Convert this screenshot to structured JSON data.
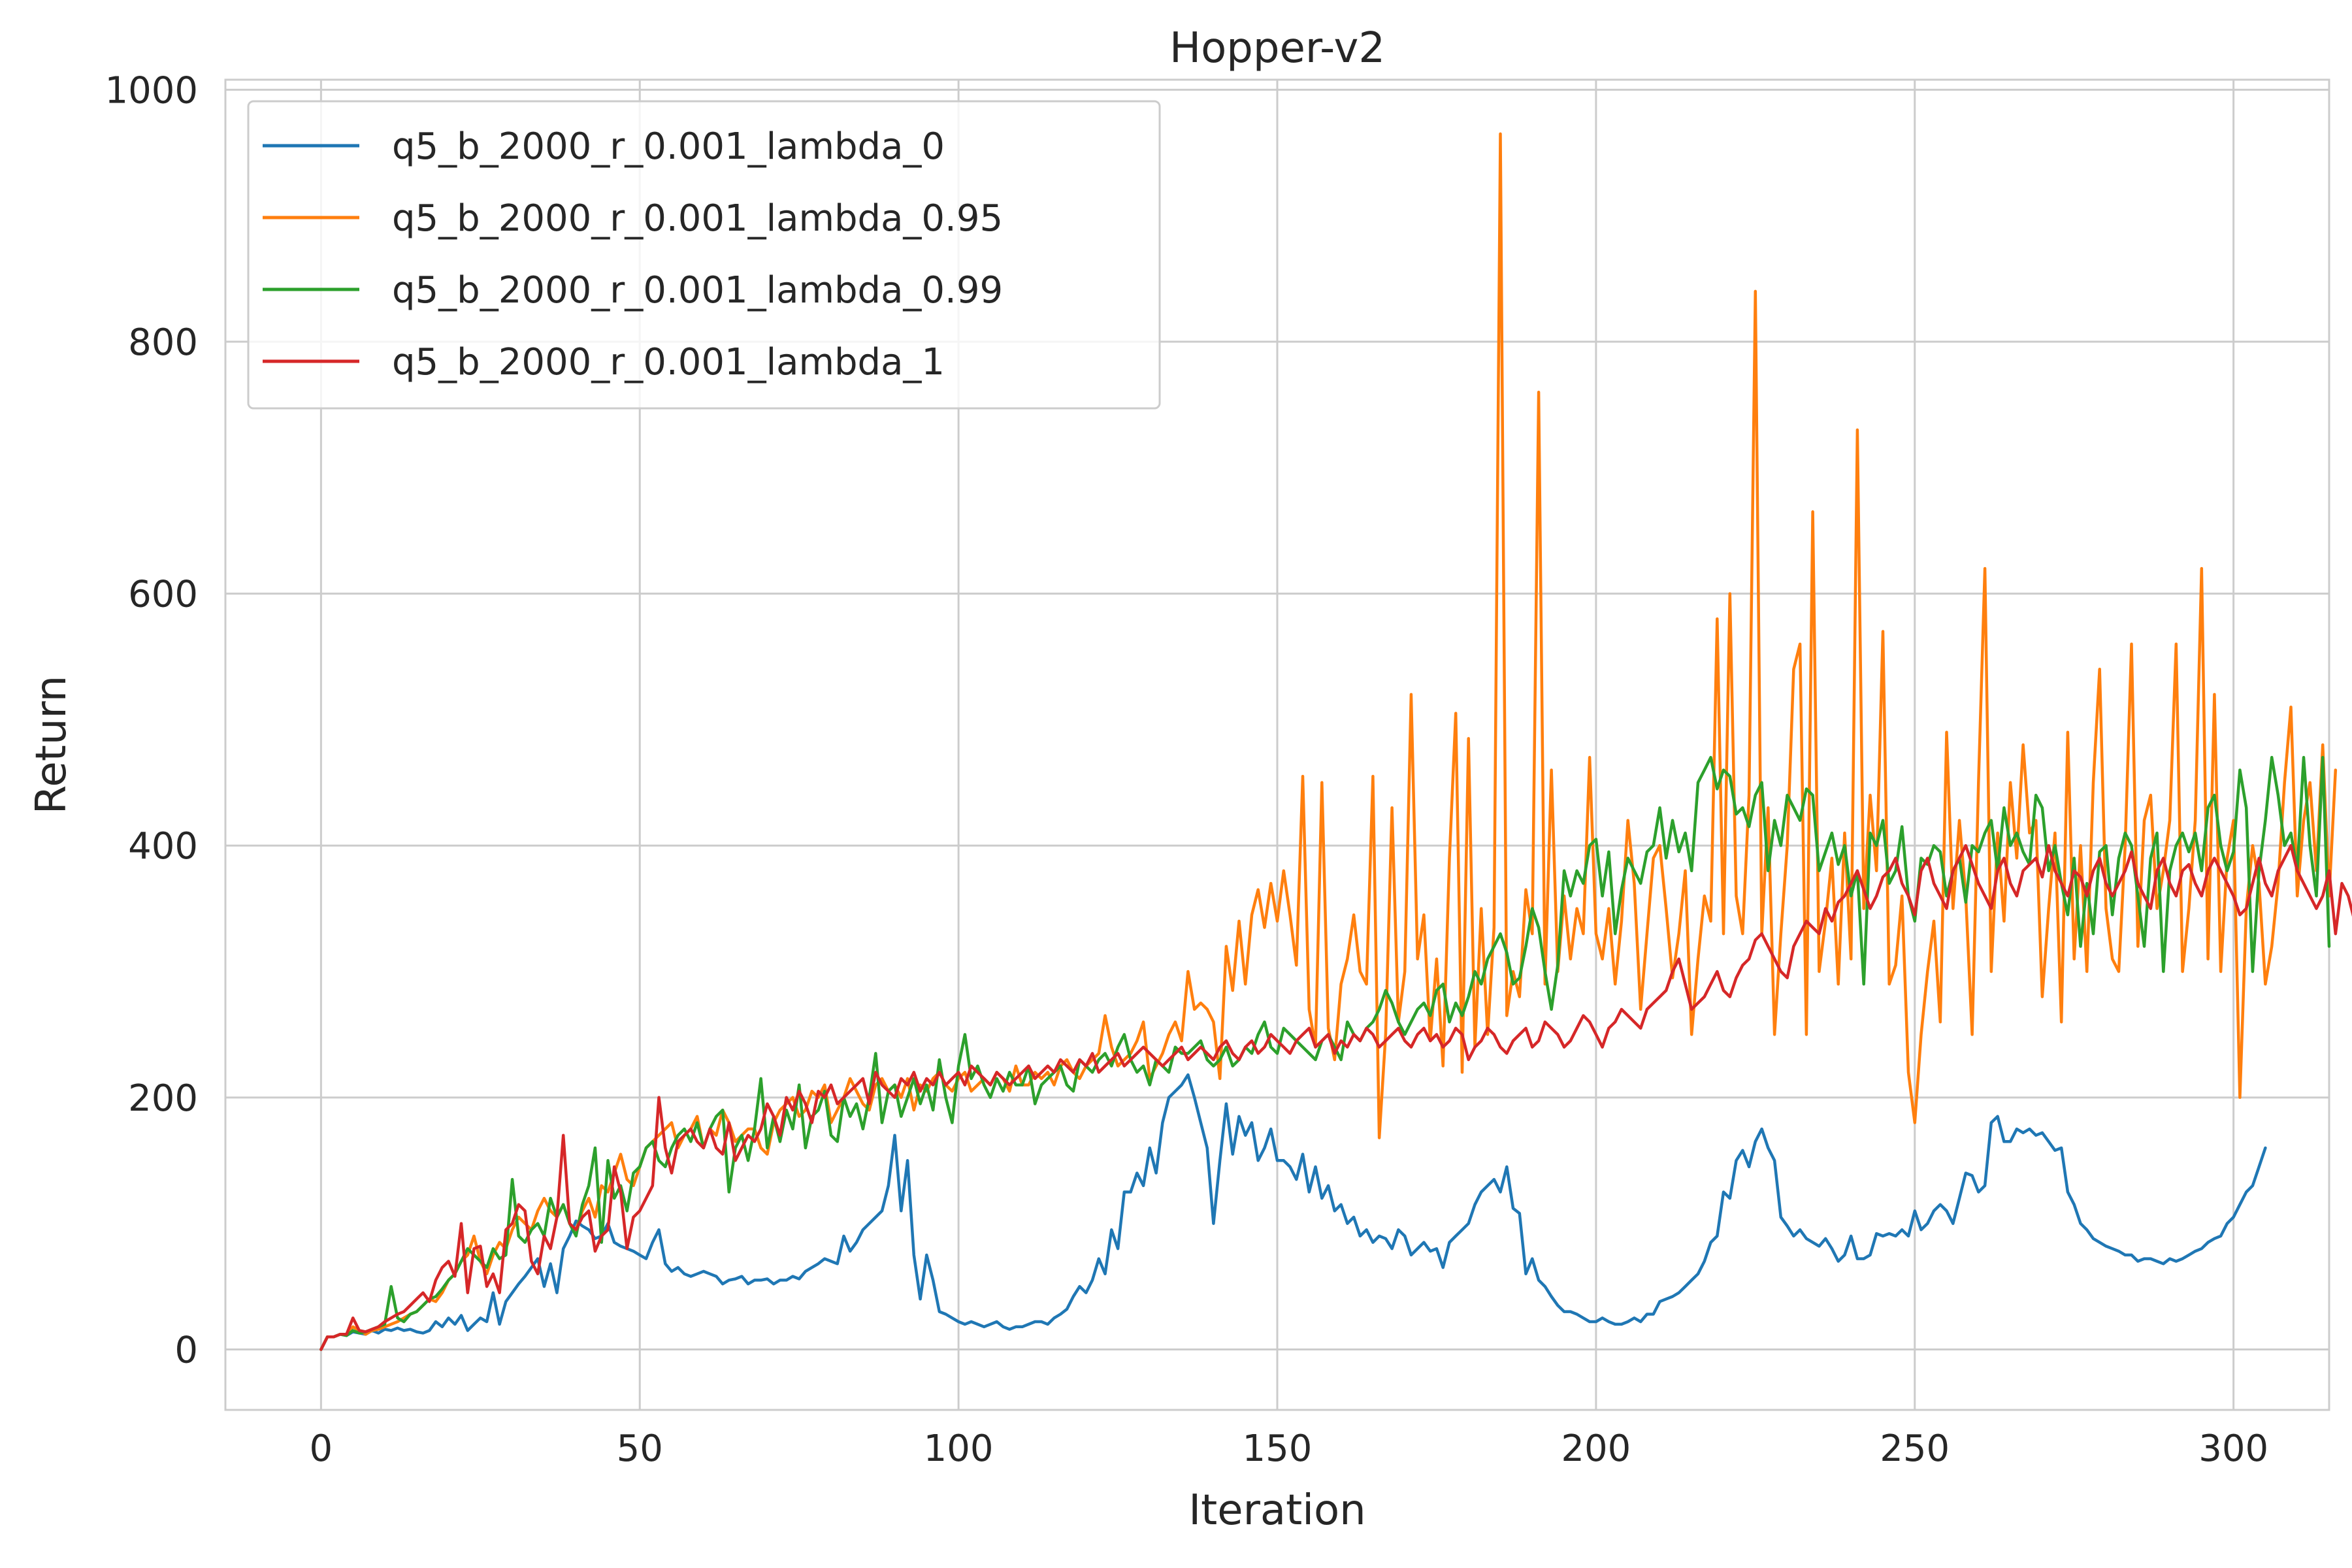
{
  "chart_data": {
    "type": "line",
    "title": "Hopper-v2",
    "xlabel": "Iteration",
    "ylabel": "Return",
    "xlim": [
      -15,
      315
    ],
    "ylim": [
      -48,
      1008
    ],
    "xticks": [
      0,
      50,
      100,
      150,
      200,
      250,
      300
    ],
    "yticks": [
      0,
      200,
      400,
      600,
      800,
      1000
    ],
    "grid": true,
    "legend_position": "upper-left",
    "series": [
      {
        "name": "q5_b_2000_r_0.001_lambda_0",
        "color": "#1f77b4",
        "x_start": 0,
        "x_step": 1,
        "values": [
          0,
          10,
          10,
          12,
          11,
          14,
          13,
          12,
          15,
          13,
          16,
          15,
          17,
          15,
          16,
          14,
          13,
          15,
          22,
          18,
          25,
          20,
          27,
          15,
          20,
          25,
          22,
          45,
          20,
          38,
          45,
          52,
          58,
          65,
          72,
          50,
          68,
          45,
          80,
          90,
          102,
          98,
          95,
          88,
          90,
          100,
          85,
          82,
          80,
          78,
          75,
          72,
          85,
          95,
          68,
          62,
          65,
          60,
          58,
          60,
          62,
          60,
          58,
          52,
          55,
          56,
          58,
          52,
          55,
          55,
          56,
          52,
          55,
          55,
          58,
          56,
          62,
          65,
          68,
          72,
          70,
          68,
          90,
          78,
          85,
          95,
          100,
          105,
          110,
          130,
          170,
          110,
          150,
          75,
          40,
          75,
          55,
          30,
          28,
          25,
          22,
          20,
          22,
          20,
          18,
          20,
          22,
          18,
          16,
          18,
          18,
          20,
          22,
          22,
          20,
          25,
          28,
          32,
          42,
          50,
          45,
          55,
          72,
          60,
          95,
          80,
          125,
          125,
          140,
          130,
          160,
          140,
          180,
          200,
          205,
          210,
          218,
          200,
          180,
          160,
          100,
          150,
          195,
          155,
          185,
          170,
          180,
          150,
          160,
          175,
          150,
          150,
          145,
          135,
          155,
          125,
          145,
          120,
          130,
          110,
          115,
          100,
          105,
          90,
          95,
          85,
          90,
          88,
          80,
          95,
          90,
          75,
          80,
          85,
          78,
          80,
          65,
          85,
          90,
          95,
          100,
          115,
          125,
          130,
          135,
          125,
          145,
          112,
          108,
          60,
          72,
          55,
          50,
          42,
          35,
          30,
          30,
          28,
          25,
          22,
          22,
          25,
          22,
          20,
          20,
          22,
          25,
          22,
          28,
          28,
          38,
          40,
          42,
          45,
          50,
          55,
          60,
          70,
          85,
          90,
          125,
          120,
          150,
          158,
          145,
          165,
          175,
          160,
          150,
          105,
          98,
          90,
          95,
          88,
          85,
          82,
          88,
          80,
          70,
          75,
          90,
          72,
          72,
          75,
          92,
          90,
          92,
          90,
          95,
          90,
          110,
          95,
          100,
          110,
          115,
          110,
          100,
          120,
          140,
          138,
          125,
          130,
          180,
          185,
          165,
          165,
          175,
          172,
          175,
          170,
          172,
          165,
          158,
          160,
          125,
          115,
          100,
          95,
          88,
          85,
          82,
          80,
          78,
          75,
          75,
          70,
          72,
          72,
          70,
          68,
          72,
          70,
          72,
          75,
          78,
          80,
          85,
          88,
          90,
          100,
          105,
          115,
          125,
          130,
          145,
          160
        ]
      },
      {
        "name": "q5_b_2000_r_0.001_lambda_0.95",
        "color": "#ff7f0e",
        "x_start": 0,
        "x_step": 1,
        "values": [
          0,
          10,
          10,
          12,
          12,
          18,
          15,
          12,
          15,
          16,
          18,
          20,
          22,
          25,
          28,
          30,
          35,
          40,
          38,
          45,
          55,
          60,
          70,
          75,
          90,
          70,
          60,
          75,
          85,
          80,
          95,
          105,
          100,
          95,
          110,
          120,
          110,
          105,
          115,
          100,
          95,
          110,
          120,
          105,
          130,
          125,
          140,
          155,
          135,
          130,
          145,
          160,
          165,
          170,
          175,
          180,
          160,
          170,
          175,
          185,
          160,
          175,
          170,
          190,
          180,
          165,
          170,
          175,
          175,
          160,
          155,
          180,
          190,
          195,
          200,
          185,
          190,
          205,
          200,
          210,
          180,
          190,
          200,
          215,
          205,
          195,
          190,
          210,
          215,
          205,
          210,
          200,
          215,
          190,
          210,
          205,
          215,
          220,
          210,
          205,
          215,
          220,
          205,
          210,
          215,
          210,
          220,
          215,
          205,
          225,
          210,
          210,
          220,
          215,
          220,
          210,
          225,
          230,
          220,
          215,
          225,
          230,
          235,
          265,
          240,
          225,
          230,
          235,
          245,
          260,
          215,
          225,
          235,
          250,
          260,
          245,
          300,
          270,
          275,
          270,
          260,
          215,
          320,
          285,
          340,
          290,
          345,
          365,
          335,
          370,
          340,
          380,
          345,
          305,
          455,
          270,
          240,
          450,
          255,
          230,
          290,
          310,
          345,
          300,
          290,
          455,
          168,
          250,
          430,
          260,
          300,
          520,
          310,
          345,
          245,
          310,
          225,
          390,
          505,
          220,
          485,
          240,
          350,
          250,
          335,
          965,
          265,
          300,
          280,
          365,
          330,
          760,
          290,
          460,
          300,
          360,
          310,
          350,
          330,
          470,
          330,
          310,
          350,
          290,
          340,
          420,
          370,
          270,
          330,
          390,
          400,
          350,
          295,
          330,
          380,
          250,
          310,
          360,
          340,
          580,
          330,
          600,
          360,
          330,
          440,
          840,
          330,
          430,
          250,
          330,
          400,
          540,
          560,
          250,
          665,
          300,
          340,
          390,
          290,
          410,
          310,
          730,
          350,
          440,
          380,
          570,
          290,
          305,
          360,
          220,
          180,
          250,
          300,
          340,
          260,
          490,
          350,
          420,
          360,
          250,
          450,
          620,
          300,
          410,
          340,
          450,
          390,
          480,
          410,
          420,
          280,
          350,
          410,
          260,
          490,
          310,
          400,
          300,
          450,
          540,
          350,
          310,
          300,
          400,
          560,
          320,
          420,
          440,
          350,
          380,
          420,
          560,
          300,
          350,
          420,
          620,
          310,
          520,
          300,
          390,
          420,
          200,
          350,
          400,
          370,
          290,
          320,
          370,
          450,
          510,
          360,
          420,
          450,
          380,
          480,
          360,
          460
        ]
      },
      {
        "name": "q5_b_2000_r_0.001_lambda_0.99",
        "color": "#2ca02c",
        "x_start": 0,
        "x_step": 1,
        "values": [
          0,
          10,
          10,
          12,
          11,
          15,
          13,
          14,
          16,
          18,
          20,
          50,
          25,
          22,
          28,
          30,
          35,
          40,
          42,
          48,
          55,
          60,
          70,
          80,
          75,
          70,
          65,
          80,
          72,
          75,
          135,
          90,
          85,
          95,
          100,
          90,
          120,
          105,
          115,
          100,
          90,
          115,
          130,
          160,
          85,
          150,
          120,
          130,
          110,
          140,
          145,
          160,
          165,
          150,
          145,
          160,
          170,
          175,
          165,
          180,
          160,
          175,
          185,
          190,
          125,
          160,
          170,
          150,
          175,
          215,
          160,
          185,
          165,
          190,
          175,
          210,
          160,
          185,
          190,
          205,
          170,
          165,
          200,
          185,
          195,
          175,
          200,
          235,
          180,
          205,
          210,
          185,
          200,
          215,
          195,
          210,
          190,
          230,
          200,
          180,
          225,
          250,
          215,
          225,
          210,
          200,
          215,
          205,
          220,
          210,
          210,
          225,
          195,
          210,
          215,
          220,
          225,
          210,
          205,
          230,
          225,
          220,
          230,
          235,
          225,
          240,
          250,
          230,
          220,
          225,
          210,
          230,
          225,
          220,
          240,
          235,
          235,
          240,
          245,
          230,
          225,
          230,
          240,
          225,
          230,
          240,
          235,
          250,
          260,
          240,
          235,
          255,
          250,
          245,
          240,
          235,
          230,
          245,
          250,
          240,
          230,
          260,
          250,
          245,
          255,
          260,
          270,
          285,
          275,
          260,
          250,
          260,
          270,
          275,
          265,
          285,
          290,
          260,
          275,
          265,
          280,
          300,
          290,
          310,
          320,
          330,
          315,
          290,
          295,
          320,
          350,
          335,
          300,
          270,
          305,
          380,
          360,
          380,
          370,
          400,
          405,
          360,
          395,
          330,
          365,
          390,
          380,
          370,
          395,
          400,
          430,
          390,
          420,
          395,
          410,
          380,
          450,
          460,
          470,
          445,
          460,
          455,
          425,
          430,
          415,
          440,
          450,
          380,
          420,
          400,
          440,
          430,
          420,
          445,
          440,
          380,
          395,
          410,
          385,
          400,
          360,
          380,
          290,
          410,
          400,
          420,
          370,
          380,
          415,
          360,
          340,
          390,
          385,
          400,
          395,
          360,
          380,
          390,
          355,
          400,
          395,
          410,
          420,
          380,
          430,
          400,
          410,
          395,
          385,
          440,
          430,
          380,
          400,
          370,
          345,
          390,
          320,
          370,
          330,
          395,
          400,
          345,
          390,
          410,
          400,
          360,
          320,
          390,
          410,
          300,
          380,
          400,
          410,
          395,
          410,
          380,
          430,
          440,
          400,
          380,
          395,
          460,
          430,
          300,
          380,
          420,
          470,
          440,
          400,
          410,
          380,
          470,
          400,
          360,
          470,
          320
        ]
      },
      {
        "name": "q5_b_2000_r_0.001_lambda_1",
        "color": "#d62728",
        "x_start": 0,
        "x_step": 1,
        "values": [
          0,
          10,
          10,
          12,
          12,
          25,
          15,
          14,
          16,
          18,
          22,
          25,
          28,
          30,
          35,
          40,
          45,
          38,
          55,
          65,
          70,
          58,
          100,
          45,
          80,
          82,
          50,
          60,
          45,
          95,
          100,
          115,
          110,
          70,
          60,
          90,
          80,
          105,
          170,
          100,
          95,
          105,
          110,
          78,
          90,
          95,
          145,
          125,
          80,
          105,
          110,
          120,
          130,
          200,
          160,
          140,
          165,
          170,
          175,
          165,
          160,
          175,
          160,
          155,
          180,
          150,
          160,
          170,
          165,
          175,
          195,
          185,
          170,
          200,
          190,
          205,
          195,
          180,
          205,
          200,
          210,
          195,
          200,
          205,
          210,
          215,
          195,
          220,
          210,
          205,
          200,
          215,
          210,
          220,
          205,
          215,
          210,
          220,
          210,
          215,
          220,
          210,
          225,
          220,
          215,
          210,
          220,
          215,
          210,
          215,
          220,
          225,
          215,
          220,
          225,
          220,
          230,
          225,
          220,
          230,
          225,
          235,
          220,
          225,
          230,
          235,
          225,
          230,
          235,
          240,
          235,
          230,
          225,
          230,
          235,
          240,
          230,
          235,
          240,
          235,
          230,
          240,
          245,
          235,
          230,
          240,
          245,
          235,
          240,
          250,
          245,
          240,
          235,
          245,
          250,
          255,
          240,
          245,
          250,
          235,
          245,
          240,
          250,
          245,
          255,
          250,
          240,
          245,
          250,
          255,
          245,
          240,
          250,
          255,
          245,
          250,
          240,
          245,
          255,
          250,
          230,
          240,
          245,
          255,
          250,
          240,
          235,
          245,
          250,
          255,
          240,
          245,
          260,
          255,
          250,
          240,
          245,
          255,
          265,
          260,
          250,
          240,
          255,
          260,
          270,
          265,
          260,
          255,
          270,
          275,
          280,
          285,
          300,
          310,
          290,
          270,
          275,
          280,
          290,
          300,
          285,
          280,
          295,
          305,
          310,
          325,
          330,
          320,
          310,
          300,
          295,
          320,
          330,
          340,
          335,
          330,
          350,
          340,
          355,
          360,
          370,
          380,
          365,
          350,
          360,
          375,
          380,
          390,
          370,
          360,
          345,
          380,
          390,
          370,
          360,
          350,
          380,
          390,
          400,
          385,
          370,
          360,
          350,
          380,
          390,
          370,
          360,
          380,
          385,
          390,
          375,
          400,
          380,
          370,
          360,
          380,
          375,
          360,
          380,
          390,
          370,
          360,
          370,
          380,
          395,
          370,
          360,
          350,
          380,
          390,
          370,
          360,
          380,
          385,
          370,
          360,
          380,
          390,
          380,
          370,
          360,
          345,
          350,
          370,
          390,
          370,
          360,
          380,
          390,
          400,
          380,
          370,
          360,
          350,
          360,
          380,
          330,
          370,
          360,
          340,
          310
        ]
      }
    ]
  }
}
